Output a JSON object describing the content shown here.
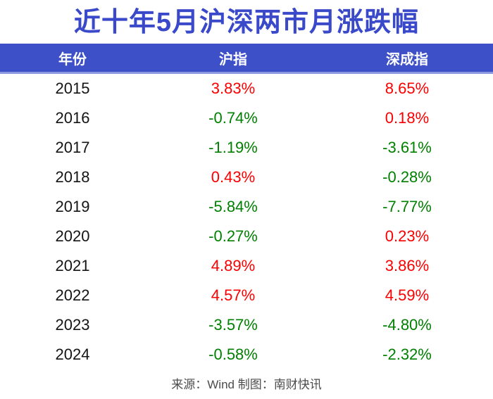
{
  "title": {
    "text": "近十年5月沪深两市月涨跌幅"
  },
  "colors": {
    "title_blue": "#3a49c9",
    "header_bg": "#3e50c8",
    "header_border": "#8e98de",
    "gain_red": "#fb0000",
    "loss_green": "#008000"
  },
  "table": {
    "headers": [
      {
        "label": "年份"
      },
      {
        "label": "沪指"
      },
      {
        "label": "深成指"
      }
    ],
    "rows": [
      {
        "year": "2015",
        "sh": "3.83%",
        "sh_dir": "up",
        "sz": "8.65%",
        "sz_dir": "up"
      },
      {
        "year": "2016",
        "sh": "-0.74%",
        "sh_dir": "down",
        "sz": "0.18%",
        "sz_dir": "up"
      },
      {
        "year": "2017",
        "sh": "-1.19%",
        "sh_dir": "down",
        "sz": "-3.61%",
        "sz_dir": "down"
      },
      {
        "year": "2018",
        "sh": "0.43%",
        "sh_dir": "up",
        "sz": "-0.28%",
        "sz_dir": "down"
      },
      {
        "year": "2019",
        "sh": "-5.84%",
        "sh_dir": "down",
        "sz": "-7.77%",
        "sz_dir": "down"
      },
      {
        "year": "2020",
        "sh": "-0.27%",
        "sh_dir": "down",
        "sz": "0.23%",
        "sz_dir": "up"
      },
      {
        "year": "2021",
        "sh": "4.89%",
        "sh_dir": "up",
        "sz": "3.86%",
        "sz_dir": "up"
      },
      {
        "year": "2022",
        "sh": "4.57%",
        "sh_dir": "up",
        "sz": "4.59%",
        "sz_dir": "up"
      },
      {
        "year": "2023",
        "sh": "-3.57%",
        "sh_dir": "down",
        "sz": "-4.80%",
        "sz_dir": "down"
      },
      {
        "year": "2024",
        "sh": "-0.58%",
        "sh_dir": "down",
        "sz": "-2.32%",
        "sz_dir": "down"
      }
    ]
  },
  "footer": {
    "text": "来源：Wind 制图：南财快讯"
  },
  "chart_data": {
    "type": "table",
    "title": "近十年5月沪深两市月涨跌幅",
    "columns": [
      "年份",
      "沪指",
      "深成指"
    ],
    "rows": [
      [
        "2015",
        "3.83%",
        "8.65%"
      ],
      [
        "2016",
        "-0.74%",
        "0.18%"
      ],
      [
        "2017",
        "-1.19%",
        "-3.61%"
      ],
      [
        "2018",
        "0.43%",
        "-0.28%"
      ],
      [
        "2019",
        "-5.84%",
        "-7.77%"
      ],
      [
        "2020",
        "-0.27%",
        "0.23%"
      ],
      [
        "2021",
        "4.89%",
        "3.86%"
      ],
      [
        "2022",
        "4.57%",
        "4.59%"
      ],
      [
        "2023",
        "-3.57%",
        "-4.80%"
      ],
      [
        "2024",
        "-0.58%",
        "-2.32%"
      ]
    ],
    "series": [
      {
        "name": "沪指",
        "values": [
          3.83,
          -0.74,
          -1.19,
          0.43,
          -5.84,
          -0.27,
          4.89,
          4.57,
          -3.57,
          -0.58
        ]
      },
      {
        "name": "深成指",
        "values": [
          8.65,
          0.18,
          -3.61,
          -0.28,
          -7.77,
          0.23,
          3.86,
          4.59,
          -4.8,
          -2.32
        ]
      }
    ],
    "categories": [
      "2015",
      "2016",
      "2017",
      "2018",
      "2019",
      "2020",
      "2021",
      "2022",
      "2023",
      "2024"
    ],
    "value_unit": "%",
    "color_coding": {
      "positive_style_red": "#fb0000",
      "negative_style_green": "#008000"
    },
    "source_note": "来源：Wind 制图：南财快讯"
  }
}
